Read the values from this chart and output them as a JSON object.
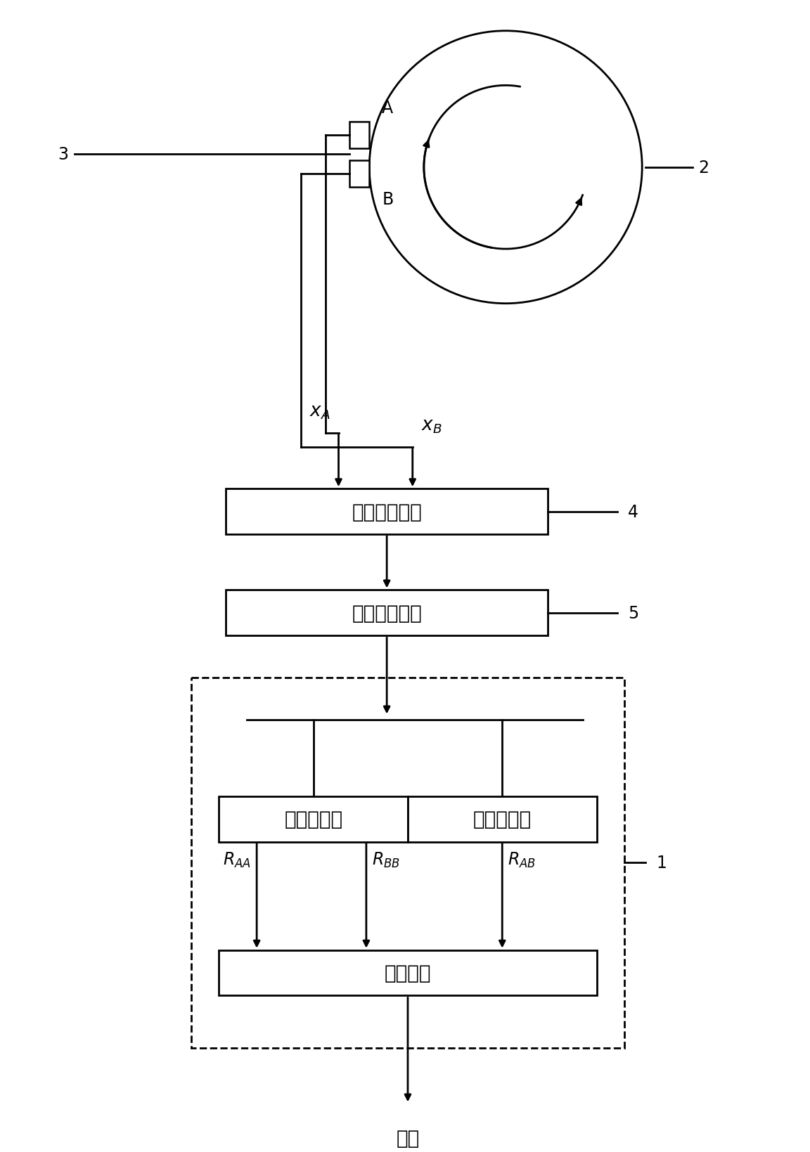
{
  "bg_color": "#ffffff",
  "line_color": "#000000",
  "box_signal_cond": "信号调理单元",
  "box_signal_proc": "信号处理单元",
  "box_auto_corr": "自相关分析",
  "box_cross_corr": "互相关分析",
  "box_speed_calc": "转速计算",
  "output_label": "转速",
  "label_2": "2",
  "label_3": "3",
  "label_4": "4",
  "label_5": "5",
  "label_1": "1",
  "label_A": "A",
  "label_B": "B",
  "font_size_box": 20,
  "font_size_label": 17,
  "font_size_number": 17,
  "font_size_sub": 14
}
